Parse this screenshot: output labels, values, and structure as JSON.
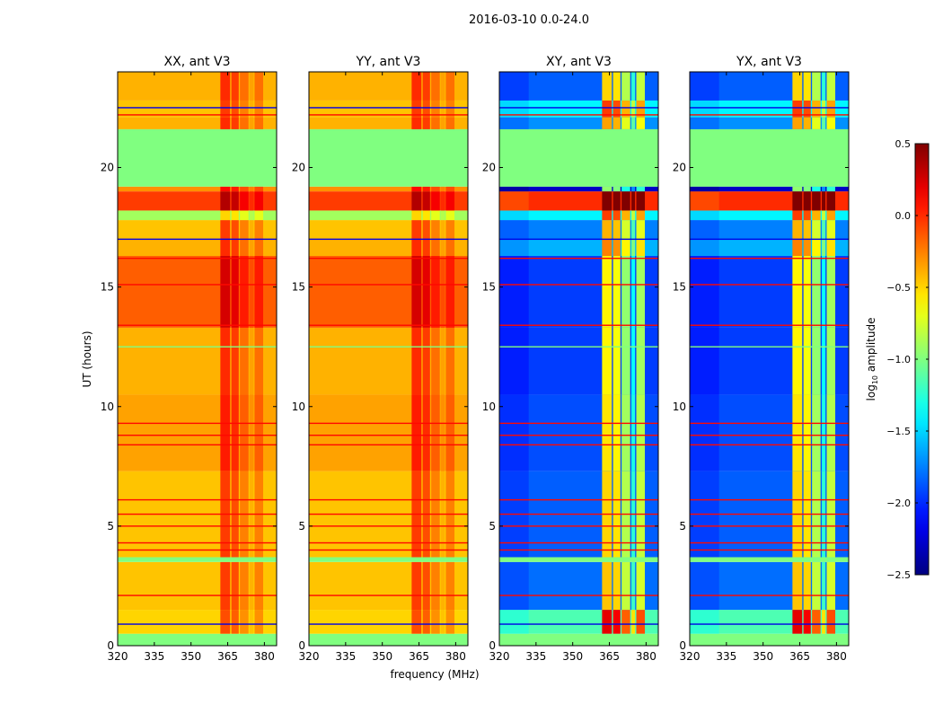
{
  "chart_data": {
    "type": "heatmap",
    "title": "2016-03-10 0.0-24.0",
    "xlabel": "frequency (MHz)",
    "ylabel": "UT (hours)",
    "xlim": [
      320,
      385
    ],
    "ylim": [
      0,
      24
    ],
    "xticks": [
      320,
      335,
      350,
      365,
      380
    ],
    "xtick_labels": [
      "320",
      "335",
      "350",
      "365",
      "380"
    ],
    "yticks": [
      0,
      5,
      10,
      15,
      20
    ],
    "ytick_labels": [
      "0",
      "5",
      "10",
      "15",
      "20"
    ],
    "panels": [
      {
        "title": "XX, ant V3",
        "kind": "parallel"
      },
      {
        "title": "YY, ant V3",
        "kind": "parallel"
      },
      {
        "title": "XY, ant V3",
        "kind": "cross"
      },
      {
        "title": "YX, ant V3",
        "kind": "cross"
      }
    ],
    "time_bands": [
      {
        "t": [
          0,
          0.5
        ],
        "parallel": -1.0,
        "cross": -1.0
      },
      {
        "t": [
          0.5,
          1.5
        ],
        "parallel": -0.5,
        "cross": -1.15
      },
      {
        "t": [
          1.5,
          3.5
        ],
        "parallel": -0.45,
        "cross": -1.8
      },
      {
        "t": [
          3.5,
          3.7
        ],
        "parallel": -1.0,
        "cross": -1.0
      },
      {
        "t": [
          3.7,
          7.3
        ],
        "parallel": -0.45,
        "cross": -1.85
      },
      {
        "t": [
          7.3,
          10.5
        ],
        "parallel": -0.35,
        "cross": -1.9
      },
      {
        "t": [
          10.5,
          13.3
        ],
        "parallel": -0.4,
        "cross": -1.95
      },
      {
        "t": [
          13.3,
          16.3
        ],
        "parallel": -0.15,
        "cross": -1.95
      },
      {
        "t": [
          16.3,
          17.0
        ],
        "parallel": -0.4,
        "cross": -1.6
      },
      {
        "t": [
          17.0,
          17.8
        ],
        "parallel": -0.45,
        "cross": -1.75
      },
      {
        "t": [
          17.8,
          18.2
        ],
        "parallel": -0.9,
        "cross": -1.4
      },
      {
        "t": [
          18.2,
          19.0
        ],
        "parallel": -0.05,
        "cross": 0.0
      },
      {
        "t": [
          19.0,
          19.2
        ],
        "parallel": -0.3,
        "cross": -2.3
      },
      {
        "t": [
          19.2,
          21.6
        ],
        "parallel": -1.0,
        "cross": -1.0
      },
      {
        "t": [
          21.6,
          22.1
        ],
        "parallel": -0.4,
        "cross": -1.7
      },
      {
        "t": [
          22.1,
          22.8
        ],
        "parallel": -0.45,
        "cross": -1.4
      },
      {
        "t": [
          22.8,
          24
        ],
        "parallel": -0.4,
        "cross": -1.85
      }
    ],
    "line_events": [
      {
        "t": 0.9,
        "value": -2.2
      },
      {
        "t": 2.1,
        "value": 0.1
      },
      {
        "t": 4.0,
        "value": 0.1
      },
      {
        "t": 4.3,
        "value": 0.1
      },
      {
        "t": 5.0,
        "value": 0.1
      },
      {
        "t": 5.5,
        "value": 0.1
      },
      {
        "t": 6.1,
        "value": 0.1
      },
      {
        "t": 8.4,
        "value": 0.1
      },
      {
        "t": 8.8,
        "value": 0.1
      },
      {
        "t": 9.3,
        "value": 0.1
      },
      {
        "t": 12.5,
        "value": -1.0
      },
      {
        "t": 13.4,
        "value": 0.1
      },
      {
        "t": 15.1,
        "value": 0.1
      },
      {
        "t": 16.2,
        "value": 0.1
      },
      {
        "t": 17.0,
        "value": -2.2
      },
      {
        "t": 22.2,
        "value": 0.1
      },
      {
        "t": 22.5,
        "value": -2.2
      }
    ],
    "channel_columns": [
      {
        "f": [
          362,
          366
        ],
        "parallel_offset": 0.4,
        "cross_offset": 1.35
      },
      {
        "f": [
          366.5,
          369.5
        ],
        "parallel_offset": 0.35,
        "cross_offset": 1.3
      },
      {
        "f": [
          370,
          373.5
        ],
        "parallel_offset": 0.2,
        "cross_offset": 1.0
      },
      {
        "f": [
          374,
          375.5
        ],
        "parallel_offset": 0.05,
        "cross_offset": 0.6
      },
      {
        "f": [
          376,
          379.5
        ],
        "parallel_offset": 0.2,
        "cross_offset": 1.05
      }
    ],
    "colorbar": {
      "label": "log10 amplitude",
      "range": [
        -2.5,
        0.5
      ],
      "ticks": [
        "0.5",
        "0.0",
        "−0.5",
        "−1.0",
        "−1.5",
        "−2.0",
        "−2.5"
      ],
      "tick_values": [
        0.5,
        0.0,
        -0.5,
        -1.0,
        -1.5,
        -2.0,
        -2.5
      ],
      "colormap": "jet"
    }
  }
}
